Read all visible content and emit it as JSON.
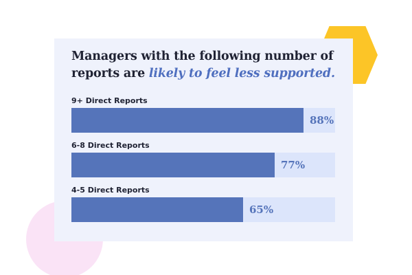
{
  "colors": {
    "card_background": "#eff2fc",
    "bar_fill": "#5574ba",
    "bar_track": "#dce5fb",
    "accent_text": "#4f6fbf",
    "hexagon_yellow": "#fcc527",
    "circle_pink": "#fae3f6"
  },
  "chart_data": {
    "type": "bar",
    "orientation": "horizontal",
    "title_plain": "Managers with the following number of reports are",
    "title_emphasis": "likely to feel less supported.",
    "categories": [
      "9+ Direct Reports",
      "6-8 Direct Reports",
      "4-5 Direct Reports"
    ],
    "values": [
      88,
      77,
      65
    ],
    "value_labels": [
      "88%",
      "77%",
      "65%"
    ],
    "unit": "%",
    "xlim": [
      0,
      100
    ],
    "grid": false,
    "legend": "none"
  }
}
